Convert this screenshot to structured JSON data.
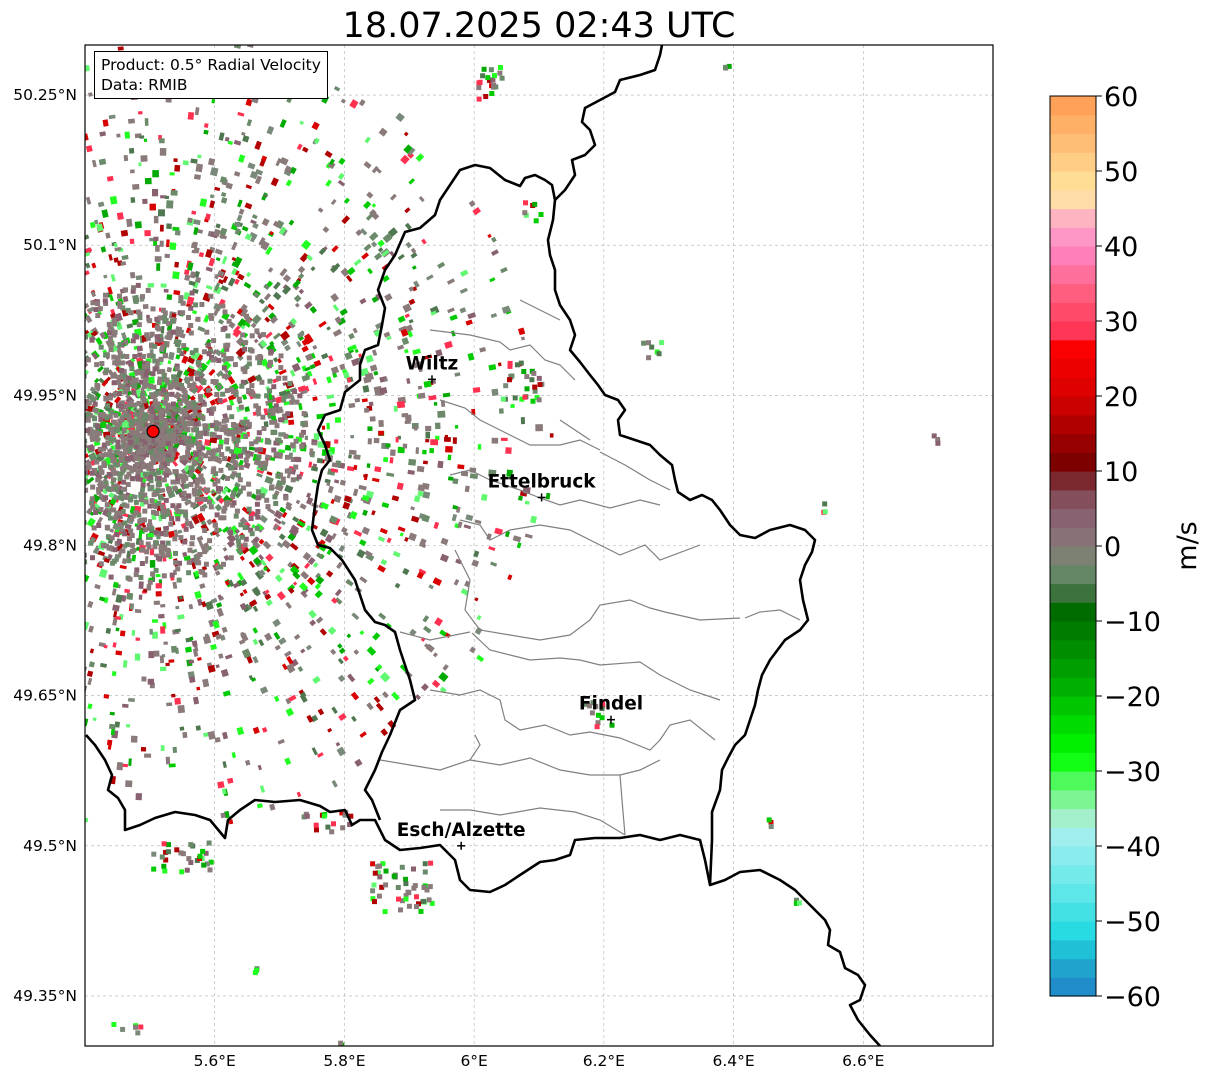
{
  "title": "18.07.2025 02:43 UTC",
  "info": {
    "product": "Product: 0.5° Radial Velocity",
    "source": "Data: RMIB"
  },
  "map": {
    "lon_range": [
      5.4,
      6.8
    ],
    "lat_range": [
      49.3,
      50.3
    ],
    "lon_ticks": [
      {
        "value": 5.6,
        "label": "5.6°E"
      },
      {
        "value": 5.8,
        "label": "5.8°E"
      },
      {
        "value": 6.0,
        "label": "6°E"
      },
      {
        "value": 6.2,
        "label": "6.2°E"
      },
      {
        "value": 6.4,
        "label": "6.4°E"
      },
      {
        "value": 6.6,
        "label": "6.6°E"
      }
    ],
    "lat_ticks": [
      {
        "value": 50.25,
        "label": "50.25°N"
      },
      {
        "value": 50.1,
        "label": "50.1°N"
      },
      {
        "value": 49.95,
        "label": "49.95°N"
      },
      {
        "value": 49.8,
        "label": "49.8°N"
      },
      {
        "value": 49.65,
        "label": "49.65°N"
      },
      {
        "value": 49.5,
        "label": "49.5°N"
      },
      {
        "value": 49.35,
        "label": "49.35°N"
      }
    ],
    "radar_site": {
      "lon": 5.505,
      "lat": 49.914
    },
    "cities": [
      {
        "name": "Wiltz",
        "lon": 5.935,
        "lat": 49.966
      },
      {
        "name": "Ettelbruck",
        "lon": 6.104,
        "lat": 49.848
      },
      {
        "name": "Findel",
        "lon": 6.211,
        "lat": 49.626
      },
      {
        "name": "Esch/Alzette",
        "lon": 5.98,
        "lat": 49.5
      }
    ],
    "border_color": "#000000",
    "canton_color": "#808080"
  },
  "colorbar": {
    "label": "m/s",
    "min": -60,
    "max": 60,
    "ticks": [
      {
        "value": 60,
        "label": "60"
      },
      {
        "value": 50,
        "label": "50"
      },
      {
        "value": 40,
        "label": "40"
      },
      {
        "value": 30,
        "label": "30"
      },
      {
        "value": 20,
        "label": "20"
      },
      {
        "value": 10,
        "label": "10"
      },
      {
        "value": 0,
        "label": "0"
      },
      {
        "value": -10,
        "label": "−10"
      },
      {
        "value": -20,
        "label": "−20"
      },
      {
        "value": -30,
        "label": "−30"
      },
      {
        "value": -40,
        "label": "−40"
      },
      {
        "value": -50,
        "label": "−50"
      },
      {
        "value": -60,
        "label": "−60"
      }
    ],
    "stops": [
      {
        "value": 60,
        "color": "#ff9a50"
      },
      {
        "value": 52,
        "color": "#ffc880"
      },
      {
        "value": 47,
        "color": "#ffe8a0"
      },
      {
        "value": 44,
        "color": "#ffb8c0"
      },
      {
        "value": 40,
        "color": "#ff88c8"
      },
      {
        "value": 34,
        "color": "#ff6080"
      },
      {
        "value": 28,
        "color": "#ff3050"
      },
      {
        "value": 27,
        "color": "#ff0000"
      },
      {
        "value": 20,
        "color": "#d80000"
      },
      {
        "value": 10,
        "color": "#700000"
      },
      {
        "value": 8,
        "color": "#804048"
      },
      {
        "value": 4,
        "color": "#886070"
      },
      {
        "value": 0,
        "color": "#8a7a7a"
      },
      {
        "value": -3,
        "color": "#6a8a6a"
      },
      {
        "value": -6,
        "color": "#507850"
      },
      {
        "value": -7,
        "color": "#006000"
      },
      {
        "value": -18,
        "color": "#00aa00"
      },
      {
        "value": -28,
        "color": "#00ff00"
      },
      {
        "value": -32,
        "color": "#60f870"
      },
      {
        "value": -36,
        "color": "#a0f0c0"
      },
      {
        "value": -37,
        "color": "#b0f0f0"
      },
      {
        "value": -46,
        "color": "#60e8e8"
      },
      {
        "value": -52,
        "color": "#20d8e0"
      },
      {
        "value": -55,
        "color": "#20b0d0"
      },
      {
        "value": -60,
        "color": "#2080c8"
      }
    ]
  },
  "chart_data": {
    "type": "heatmap",
    "title": "18.07.2025 02:43 UTC",
    "xlabel": "",
    "ylabel": "",
    "xlim": [
      5.4,
      6.8
    ],
    "ylim": [
      49.3,
      50.3
    ],
    "colorbar_label": "m/s",
    "clim": [
      -60,
      60
    ]
  }
}
